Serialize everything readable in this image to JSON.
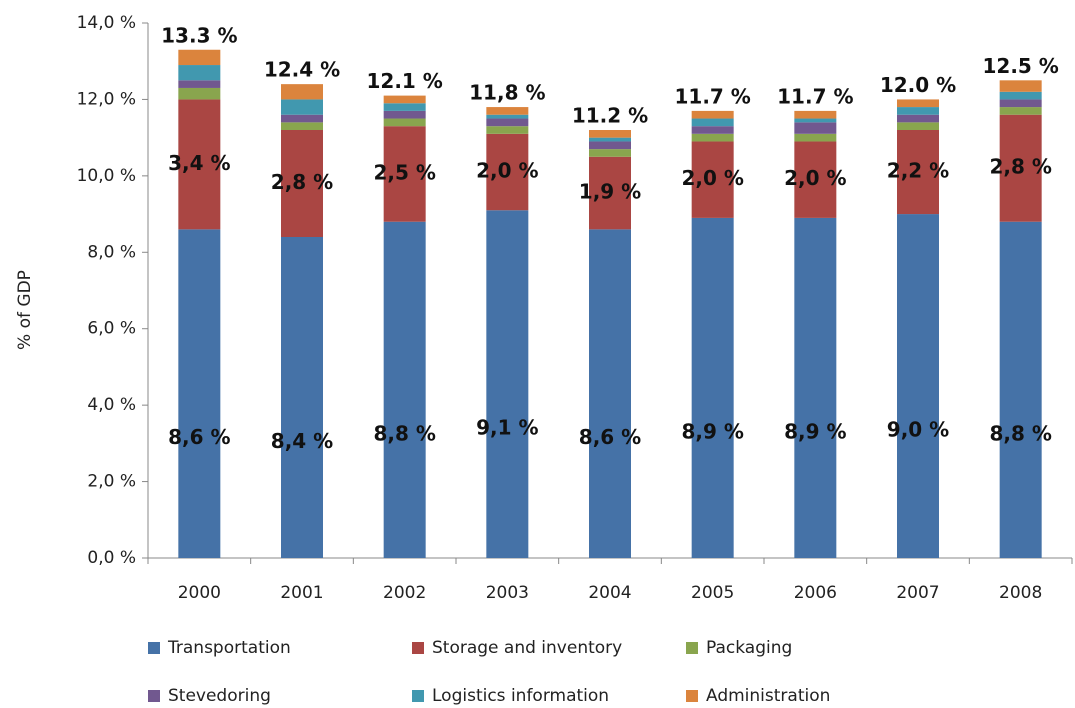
{
  "chart_data": {
    "type": "stacked-bar",
    "y_label": "% of GDP",
    "categories": [
      "2000",
      "2001",
      "2002",
      "2003",
      "2004",
      "2005",
      "2006",
      "2007",
      "2008"
    ],
    "ylim": [
      0,
      14
    ],
    "yticks": [
      {
        "value": 0,
        "label": "0,0 %"
      },
      {
        "value": 2,
        "label": "2,0 %"
      },
      {
        "value": 4,
        "label": "4,0 %"
      },
      {
        "value": 6,
        "label": "6,0 %"
      },
      {
        "value": 8,
        "label": "8,0 %"
      },
      {
        "value": 10,
        "label": "10,0 %"
      },
      {
        "value": 12,
        "label": "12,0 %"
      },
      {
        "value": 14,
        "label": "14,0 %"
      }
    ],
    "series": [
      {
        "name": "Transportation",
        "color": "#4572a7",
        "values": [
          8.6,
          8.4,
          8.8,
          9.1,
          8.6,
          8.9,
          8.9,
          9.0,
          8.8
        ],
        "value_labels": [
          "8,6 %",
          "8,4 %",
          "8,8 %",
          "9,1 %",
          "8,6 %",
          "8,9 %",
          "8,9 %",
          "9,0 %",
          "8,8 %"
        ]
      },
      {
        "name": "Storage and inventory",
        "color": "#aa4643",
        "values": [
          3.4,
          2.8,
          2.5,
          2.0,
          1.9,
          2.0,
          2.0,
          2.2,
          2.8
        ],
        "value_labels": [
          "3,4 %",
          "2,8 %",
          "2,5 %",
          "2,0 %",
          "1,9 %",
          "2,0 %",
          "2,0 %",
          "2,2 %",
          "2,8 %"
        ]
      },
      {
        "name": "Packaging",
        "color": "#89a54e",
        "values": [
          0.3,
          0.2,
          0.2,
          0.2,
          0.2,
          0.2,
          0.2,
          0.2,
          0.2
        ]
      },
      {
        "name": "Stevedoring",
        "color": "#71588f",
        "values": [
          0.2,
          0.2,
          0.2,
          0.2,
          0.2,
          0.2,
          0.3,
          0.2,
          0.2
        ]
      },
      {
        "name": "Logistics information",
        "color": "#4198af",
        "values": [
          0.4,
          0.4,
          0.2,
          0.1,
          0.1,
          0.2,
          0.1,
          0.2,
          0.2
        ]
      },
      {
        "name": "Administration",
        "color": "#db843d",
        "values": [
          0.4,
          0.4,
          0.2,
          0.2,
          0.2,
          0.2,
          0.2,
          0.2,
          0.3
        ]
      }
    ],
    "totals": [
      13.3,
      12.4,
      12.1,
      11.8,
      11.2,
      11.7,
      11.7,
      12.0,
      12.5
    ],
    "total_labels": [
      "13.3 %",
      "12.4 %",
      "12.1 %",
      "11,8 %",
      "11.2 %",
      "11.7 %",
      "11.7 %",
      "12.0 %",
      "12.5 %"
    ]
  }
}
